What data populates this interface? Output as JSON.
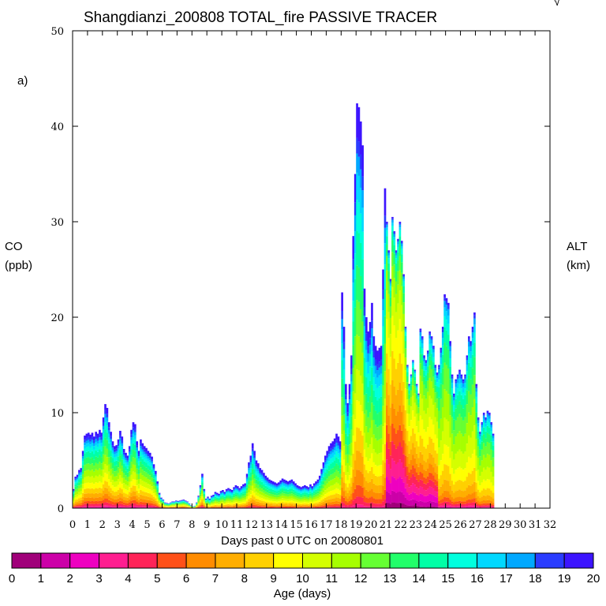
{
  "chart_data": {
    "type": "area",
    "title": "Shangdianzi_200808 TOTAL_fire PASSIVE TRACER",
    "panel_label": "a)",
    "corner_mark": "√",
    "ylabel": "CO",
    "yunit": "(ppb)",
    "y2label": "ALT",
    "y2unit": "(km)",
    "xlabel": "Days past 0 UTC on 20080801",
    "xlim": [
      0,
      32
    ],
    "ylim": [
      0,
      50
    ],
    "x_ticks": [
      0,
      1,
      2,
      3,
      4,
      5,
      6,
      7,
      8,
      9,
      10,
      11,
      12,
      13,
      14,
      15,
      16,
      17,
      18,
      19,
      20,
      21,
      22,
      23,
      24,
      25,
      26,
      27,
      28,
      29,
      30,
      31,
      32
    ],
    "y_ticks": [
      0,
      10,
      20,
      30,
      40,
      50
    ],
    "series_x_step": 0.125,
    "total_co": [
      2.0,
      3.3,
      3.5,
      4.0,
      4.2,
      6.0,
      7.6,
      7.8,
      7.9,
      7.7,
      7.9,
      7.5,
      8.0,
      7.8,
      8.2,
      7.9,
      9.5,
      10.9,
      10.5,
      9.0,
      8.0,
      7.0,
      6.5,
      6.6,
      7.2,
      8.1,
      7.5,
      6.2,
      5.8,
      5.5,
      6.5,
      8.2,
      9.0,
      8.8,
      7.0,
      6.0,
      7.2,
      6.8,
      6.5,
      6.3,
      6.0,
      5.8,
      5.4,
      4.6,
      3.9,
      2.8,
      1.6,
      1.1,
      0.9,
      0.6,
      0.55,
      0.5,
      0.6,
      0.7,
      0.7,
      0.8,
      0.75,
      0.8,
      0.85,
      0.9,
      0.8,
      0.7,
      0.5,
      0.3,
      0.2,
      0.25,
      0.6,
      1.3,
      2.4,
      3.6,
      2.0,
      1.0,
      1.2,
      1.0,
      1.3,
      1.4,
      1.7,
      1.6,
      1.5,
      1.8,
      1.9,
      1.7,
      2.0,
      2.1,
      2.0,
      1.9,
      2.2,
      2.4,
      2.3,
      2.1,
      2.3,
      2.5,
      2.6,
      3.6,
      4.8,
      5.5,
      6.8,
      6.0,
      5.0,
      4.7,
      4.2,
      4.0,
      3.7,
      3.4,
      3.2,
      3.0,
      2.9,
      2.8,
      2.7,
      2.6,
      2.7,
      2.9,
      3.1,
      3.0,
      2.9,
      2.8,
      2.9,
      3.0,
      2.8,
      2.6,
      2.4,
      2.3,
      2.2,
      2.3,
      2.4,
      2.3,
      2.2,
      2.5,
      2.3,
      2.6,
      2.8,
      3.0,
      3.4,
      4.1,
      4.8,
      5.5,
      6.0,
      6.5,
      6.8,
      7.0,
      7.3,
      7.8,
      7.5,
      7.0,
      22.6,
      19.0,
      13.0,
      11.0,
      13.0,
      16.0,
      28.5,
      35.0,
      42.4,
      42.0,
      40.5,
      38.0,
      23.0,
      20.0,
      18.5,
      19.5,
      21.5,
      18.0,
      17.0,
      16.5,
      16.8,
      17.0,
      25.0,
      33.5,
      30.0,
      27.0,
      24.0,
      30.5,
      29.0,
      27.0,
      28.2,
      30.0,
      28.0,
      24.5,
      19.0,
      15.0,
      13.0,
      14.0,
      15.5,
      14.5,
      13.0,
      12.0,
      18.8,
      18.0,
      16.0,
      15.5,
      16.5,
      18.5,
      18.0,
      17.0,
      15.0,
      14.2,
      15.0,
      16.8,
      19.0,
      22.4,
      22.0,
      21.5,
      17.5,
      14.0,
      12.0,
      13.5,
      14.0,
      14.5,
      14.0,
      13.5,
      14.0,
      16.0,
      18.0,
      17.5,
      19.0,
      20.5,
      13.0,
      9.5,
      8.0,
      9.0,
      10.0,
      9.5,
      10.2,
      10.0,
      9.0,
      7.8
    ]
  },
  "colorbar": {
    "label": "Age (days)",
    "ticks": [
      "0",
      "1",
      "2",
      "3",
      "4",
      "5",
      "6",
      "7",
      "8",
      "9",
      "10",
      "11",
      "12",
      "13",
      "14",
      "15",
      "16",
      "17",
      "18",
      "19",
      "20"
    ],
    "colors": [
      "#a0007a",
      "#cc00a8",
      "#ee00c0",
      "#ff1e90",
      "#ff2458",
      "#ff5018",
      "#ff8c00",
      "#ffae00",
      "#ffd000",
      "#ffff00",
      "#d4ff00",
      "#a6ff00",
      "#66ff33",
      "#22ff6a",
      "#00ffa6",
      "#00ffde",
      "#00d8ff",
      "#00a8ff",
      "#2a3cff",
      "#3c14ff"
    ]
  }
}
